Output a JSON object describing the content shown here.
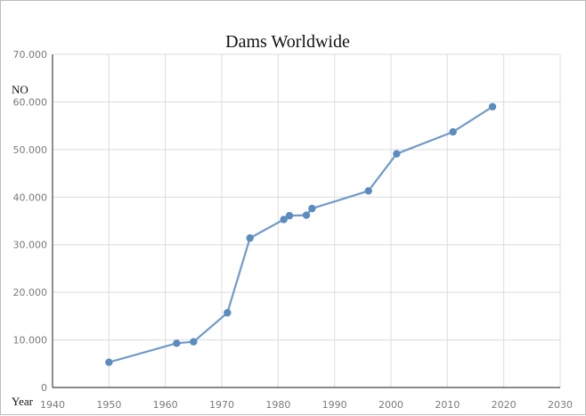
{
  "chart_data": {
    "type": "line",
    "title": "Dams Worldwide",
    "xlabel": "Year",
    "ylabel": "NO",
    "xlim": [
      1940,
      2030
    ],
    "ylim": [
      0,
      70000
    ],
    "x_ticks": [
      "1940",
      "1950",
      "1960",
      "1970",
      "1980",
      "1990",
      "2000",
      "2010",
      "2020",
      "2030"
    ],
    "y_ticks": [
      "0",
      "10.000",
      "20.000",
      "30.000",
      "40.000",
      "50.000",
      "60.000",
      "70.000"
    ],
    "grid": true,
    "series": [
      {
        "x": [
          1950,
          1962,
          1965,
          1971,
          1975,
          1981,
          1982,
          1985,
          1986,
          1996,
          2001,
          2011,
          2018
        ],
        "y": [
          5300,
          9300,
          9600,
          15700,
          31400,
          35300,
          36100,
          36200,
          37600,
          41300,
          49100,
          53700,
          59000
        ]
      }
    ],
    "colors": {
      "line": "#6f9bc7",
      "marker": "#5b8cbf",
      "grid": "#dcdcdc",
      "axis": "#444444"
    }
  }
}
